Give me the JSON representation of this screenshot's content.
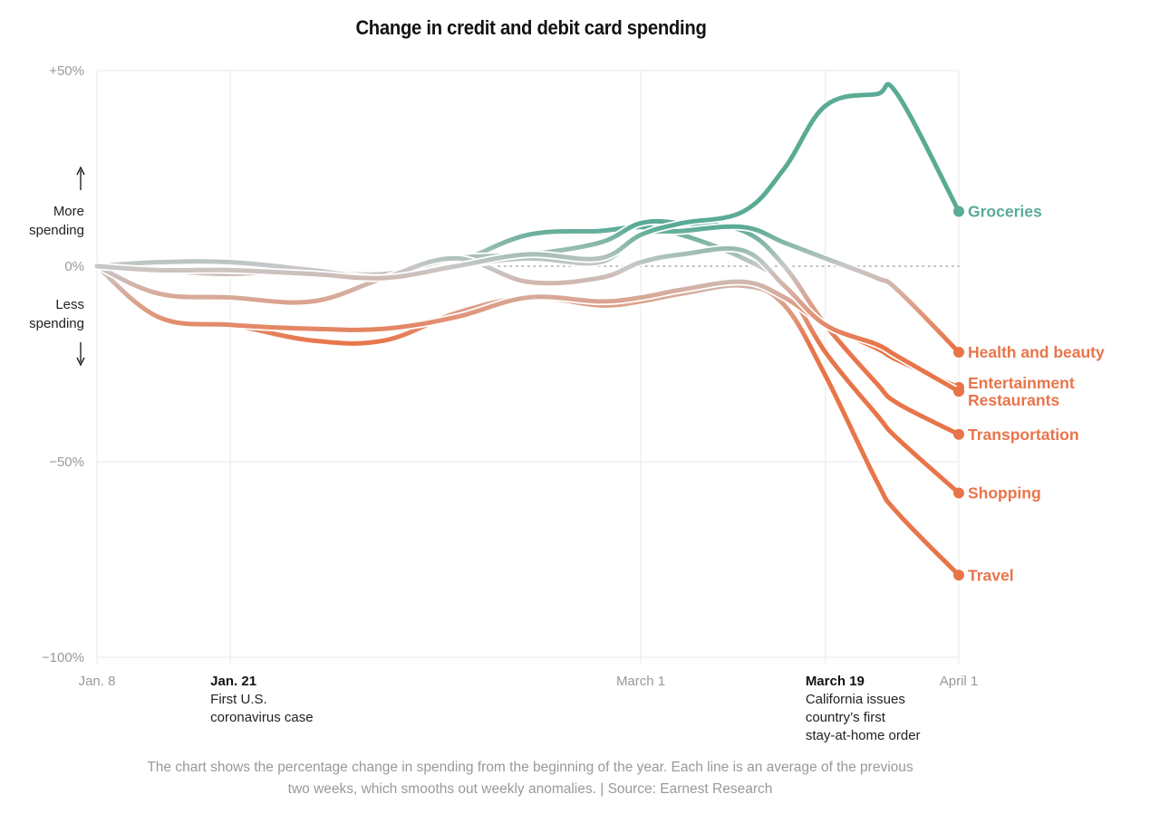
{
  "chart_data": {
    "type": "line",
    "title": "Change in credit and debit card spending",
    "xlabel": "",
    "ylabel": "",
    "ylim": [
      -100,
      50
    ],
    "yticks": [
      {
        "value": 50,
        "label": "+50%"
      },
      {
        "value": 0,
        "label": "0%"
      },
      {
        "value": -50,
        "label": "−50%"
      },
      {
        "value": -100,
        "label": "−100%"
      }
    ],
    "x_unit": "days since Jan. 8",
    "xlim": [
      0,
      84
    ],
    "xticks": [
      {
        "day": 0,
        "label": "Jan. 8",
        "style": "muted"
      },
      {
        "day": 13,
        "label": "Jan. 21",
        "style": "bold"
      },
      {
        "day": 53,
        "label": "March 1",
        "style": "muted"
      },
      {
        "day": 71,
        "label": "March 19",
        "style": "bold"
      },
      {
        "day": 84,
        "label": "April 1",
        "style": "muted"
      }
    ],
    "annotations": [
      {
        "day": 13,
        "title": "Jan. 21",
        "lines": [
          "First U.S.",
          "coronavirus case"
        ]
      },
      {
        "day": 71,
        "title": "March 19",
        "lines": [
          "California issues",
          "country’s first",
          "stay-at-home order"
        ]
      }
    ],
    "direction_labels": {
      "up": [
        "More",
        "spending"
      ],
      "down": [
        "Less",
        "spending"
      ]
    },
    "grid": true,
    "zero_line": "dotted",
    "legend": "direct-labels-right",
    "colors": {
      "positive": "#5aab95",
      "neutral": "#c8c8c8",
      "negative": "#e8754a"
    },
    "series": [
      {
        "name": "Groceries",
        "end_label": "Groceries",
        "color": "#5aab95",
        "x": [
          0,
          6,
          13,
          21,
          28,
          35,
          42,
          49,
          53,
          57,
          63,
          67,
          71,
          76,
          78,
          84
        ],
        "values": [
          0,
          -1,
          -1,
          -2,
          -3,
          0,
          3,
          2,
          8,
          11,
          14,
          25,
          41,
          44,
          44,
          14
        ]
      },
      {
        "name": "Health and beauty",
        "end_label": "Health and beauty",
        "color": "#e8754a",
        "x": [
          0,
          6,
          13,
          21,
          28,
          35,
          42,
          49,
          53,
          57,
          63,
          67,
          71,
          76,
          78,
          84
        ],
        "values": [
          0,
          1,
          1,
          -1,
          -3,
          0,
          2,
          1,
          8,
          9,
          10,
          6,
          2,
          -3,
          -6,
          -22
        ]
      },
      {
        "name": "Entertainment",
        "end_label": "Entertainment",
        "color": "#e8754a",
        "x": [
          0,
          6,
          13,
          21,
          28,
          35,
          42,
          49,
          53,
          57,
          63,
          67,
          71,
          76,
          78,
          84
        ],
        "values": [
          0,
          -7,
          -8,
          -9,
          -3,
          2,
          -4,
          -3,
          1,
          3,
          4,
          -5,
          -15,
          -20,
          -23,
          -32
        ]
      },
      {
        "name": "Restaurants",
        "end_label": "Restaurants",
        "color": "#e8754a",
        "x": [
          0,
          6,
          13,
          21,
          28,
          35,
          42,
          49,
          53,
          57,
          63,
          67,
          71,
          76,
          78,
          84
        ],
        "values": [
          0,
          -13,
          -15,
          -16,
          -16,
          -13,
          -8,
          -9,
          -8,
          -6,
          -4,
          -8,
          -15,
          -21,
          -24,
          -31
        ]
      },
      {
        "name": "Transportation",
        "end_label": "Transportation",
        "color": "#e8754a",
        "x": [
          0,
          6,
          13,
          21,
          28,
          35,
          42,
          49,
          53,
          57,
          63,
          67,
          71,
          76,
          78,
          84
        ],
        "values": [
          0,
          1,
          1,
          -1,
          -2,
          2,
          3,
          6,
          11,
          11,
          9,
          0,
          -15,
          -30,
          -35,
          -43
        ]
      },
      {
        "name": "Shopping",
        "end_label": "Shopping",
        "color": "#e8754a",
        "x": [
          0,
          6,
          13,
          21,
          28,
          35,
          42,
          49,
          53,
          57,
          63,
          67,
          71,
          76,
          78,
          84
        ],
        "values": [
          0,
          -1,
          -2,
          -1,
          -3,
          1,
          8,
          9,
          10,
          8,
          2,
          -5,
          -22,
          -38,
          -44,
          -58
        ]
      },
      {
        "name": "Travel",
        "end_label": "Travel",
        "color": "#e8754a",
        "x": [
          0,
          6,
          13,
          21,
          28,
          35,
          42,
          49,
          53,
          57,
          63,
          67,
          71,
          76,
          78,
          84
        ],
        "values": [
          0,
          -13,
          -15,
          -19,
          -19,
          -12,
          -8,
          -10,
          -9,
          -7,
          -5,
          -10,
          -28,
          -55,
          -63,
          -79
        ]
      }
    ],
    "end_labels": [
      {
        "text": "Groceries",
        "series": "Groceries",
        "color": "#5aab95"
      },
      {
        "text": "Health and beauty",
        "series": "Health and beauty",
        "color": "#e8754a"
      },
      {
        "text": "Entertainment",
        "series": "Entertainment",
        "color": "#e8754a"
      },
      {
        "text": "Restaurants",
        "series": "Restaurants",
        "color": "#e8754a"
      },
      {
        "text": "Transportation",
        "series": "Transportation",
        "color": "#e8754a"
      },
      {
        "text": "Shopping",
        "series": "Shopping",
        "color": "#e8754a"
      },
      {
        "text": "Travel",
        "series": "Travel",
        "color": "#e8754a"
      }
    ]
  },
  "note": "The chart shows the percentage change in spending from the beginning of the year. Each line is an average of the previous two weeks, which smooths out weekly anomalies. | Source: Earnest Research"
}
